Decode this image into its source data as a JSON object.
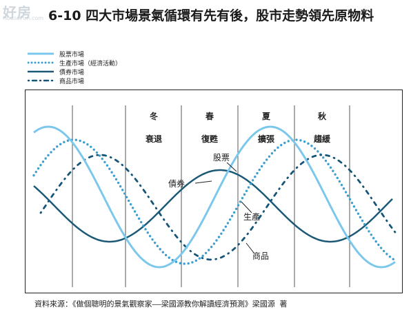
{
  "watermark": {
    "main": "好房",
    "sub": "HouseFun.com"
  },
  "title": "6-10 四大市場景氣循環有先有後，股市走勢領先原物料",
  "legend": [
    {
      "id": "stock",
      "label": "股票市場",
      "color": "#7cc7ec",
      "style": "solid-thick"
    },
    {
      "id": "production",
      "label": "生產市場（經濟活動）",
      "color": "#3a9fd1",
      "style": "dots"
    },
    {
      "id": "bond",
      "label": "債券市場",
      "color": "#1b5977",
      "style": "solid"
    },
    {
      "id": "commodity",
      "label": "商品市場",
      "color": "#155578",
      "style": "dash-dot"
    }
  ],
  "seasons": [
    {
      "season": "冬",
      "phase": "衰退"
    },
    {
      "season": "春",
      "phase": "復甦"
    },
    {
      "season": "夏",
      "phase": "擴張"
    },
    {
      "season": "秋",
      "phase": "趨緩"
    }
  ],
  "annotations": {
    "stock": "股票",
    "bond": "債券",
    "production": "生產",
    "commodity": "商品"
  },
  "source": "資料來源：《做個聰明的景氣觀察家——梁國源教你解讀經濟預測》梁國源 著"
}
